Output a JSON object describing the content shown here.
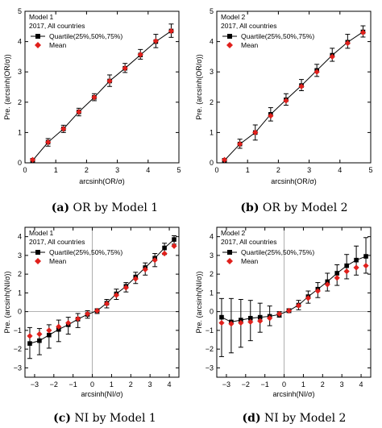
{
  "chart_data": [
    {
      "type": "line",
      "caption_id": "(a)",
      "caption_text": "OR by Model 1",
      "ylabel": "Pre. (arcsinh(OR/σ))",
      "xlabel": "arcsinh(OR/σ)",
      "xlim": [
        0,
        5
      ],
      "ylim": [
        0,
        5
      ],
      "xticks": [
        0,
        1,
        2,
        3,
        4,
        5
      ],
      "yticks": [
        0,
        1,
        2,
        3,
        4,
        5
      ],
      "zero_lines": false,
      "legend_title_1": "Model 1",
      "legend_title_2": "2017, All countries",
      "legend": [
        "Quartile(25%,50%,75%)",
        "Mean"
      ],
      "legend_position": "top-left",
      "series": [
        {
          "name": "Quartile(25%,50%,75%)",
          "x": [
            0.25,
            0.75,
            1.25,
            1.75,
            2.25,
            2.75,
            3.25,
            3.75,
            4.25,
            4.75
          ],
          "y": [
            0.08,
            0.68,
            1.12,
            1.68,
            2.16,
            2.7,
            3.12,
            3.56,
            4.0,
            4.35
          ],
          "q25": [
            0.03,
            0.55,
            1.0,
            1.55,
            2.05,
            2.52,
            2.98,
            3.42,
            3.8,
            4.14
          ],
          "q75": [
            0.14,
            0.8,
            1.24,
            1.8,
            2.28,
            2.9,
            3.28,
            3.74,
            4.24,
            4.58
          ]
        },
        {
          "name": "Mean",
          "x": [
            0.25,
            0.75,
            1.25,
            1.75,
            2.25,
            2.75,
            3.25,
            3.75,
            4.25,
            4.75
          ],
          "y": [
            0.1,
            0.68,
            1.12,
            1.68,
            2.16,
            2.7,
            3.12,
            3.57,
            4.02,
            4.35
          ]
        }
      ]
    },
    {
      "type": "line",
      "caption_id": "(b)",
      "caption_text": "OR by Model 2",
      "ylabel": "Pre. (arcsinh(OR/σ))",
      "xlabel": "arcsinh(OR/σ)",
      "xlim": [
        0,
        5
      ],
      "ylim": [
        0,
        5
      ],
      "xticks": [
        0,
        1,
        2,
        3,
        4,
        5
      ],
      "yticks": [
        0,
        1,
        2,
        3,
        4,
        5
      ],
      "zero_lines": false,
      "legend_title_1": "Model 2",
      "legend_title_2": "2017, All countries",
      "legend": [
        "Quartile(25%,50%,75%)",
        "Mean"
      ],
      "legend_position": "top-left",
      "series": [
        {
          "name": "Quartile(25%,50%,75%)",
          "x": [
            0.25,
            0.75,
            1.25,
            1.75,
            2.25,
            2.75,
            3.25,
            3.75,
            4.25,
            4.75
          ],
          "y": [
            0.08,
            0.62,
            1.0,
            1.6,
            2.08,
            2.55,
            3.05,
            3.55,
            3.98,
            4.32
          ],
          "q25": [
            0.03,
            0.48,
            0.75,
            1.38,
            1.9,
            2.38,
            2.85,
            3.35,
            3.78,
            4.15
          ],
          "q75": [
            0.14,
            0.78,
            1.25,
            1.82,
            2.28,
            2.75,
            3.25,
            3.78,
            4.24,
            4.52
          ]
        },
        {
          "name": "Mean",
          "x": [
            0.25,
            0.75,
            1.25,
            1.75,
            2.25,
            2.75,
            3.25,
            3.75,
            4.25,
            4.75
          ],
          "y": [
            0.1,
            0.62,
            1.0,
            1.55,
            2.05,
            2.52,
            3.0,
            3.5,
            3.95,
            4.3
          ]
        }
      ]
    },
    {
      "type": "line",
      "caption_id": "(c)",
      "caption_text": "NI by Model 1",
      "ylabel": "Pre. (arcsinh(NI/σ))",
      "xlabel": "arcsinh(NI/σ)",
      "xlim": [
        -3.5,
        4.5
      ],
      "ylim": [
        -3.5,
        4.5
      ],
      "xticks": [
        -3,
        -2,
        -1,
        0,
        1,
        2,
        3,
        4
      ],
      "yticks": [
        -3,
        -2,
        -1,
        0,
        1,
        2,
        3,
        4
      ],
      "zero_lines": true,
      "legend_title_1": "Model 1",
      "legend_title_2": "2017, All countries",
      "legend": [
        "Quartile(25%,50%,75%)",
        "Mean"
      ],
      "legend_position": "top-left",
      "series": [
        {
          "name": "Quartile(25%,50%,75%)",
          "x": [
            -3.25,
            -2.75,
            -2.25,
            -1.75,
            -1.25,
            -0.75,
            -0.25,
            0.25,
            0.75,
            1.25,
            1.75,
            2.25,
            2.75,
            3.25,
            3.75,
            4.25
          ],
          "y": [
            -1.7,
            -1.55,
            -1.25,
            -0.95,
            -0.7,
            -0.4,
            -0.15,
            0.05,
            0.45,
            0.95,
            1.35,
            1.85,
            2.35,
            2.85,
            3.4,
            3.85
          ],
          "q25": [
            -2.5,
            -2.3,
            -1.95,
            -1.6,
            -1.2,
            -0.85,
            -0.35,
            -0.1,
            0.2,
            0.65,
            1.05,
            1.5,
            1.95,
            2.4,
            3.05,
            3.6
          ],
          "q75": [
            -0.85,
            -0.9,
            -0.7,
            -0.45,
            -0.3,
            -0.1,
            0.05,
            0.15,
            0.65,
            1.2,
            1.55,
            2.1,
            2.6,
            3.1,
            3.65,
            4.05
          ]
        },
        {
          "name": "Mean",
          "x": [
            -3.25,
            -2.75,
            -2.25,
            -1.75,
            -1.25,
            -0.75,
            -0.25,
            0.25,
            0.75,
            1.25,
            1.75,
            2.25,
            2.75,
            3.25,
            3.75,
            4.25
          ],
          "y": [
            -1.3,
            -1.2,
            -1.0,
            -0.8,
            -0.6,
            -0.38,
            -0.12,
            0.05,
            0.42,
            0.88,
            1.28,
            1.75,
            2.25,
            2.75,
            3.1,
            3.5
          ]
        }
      ]
    },
    {
      "type": "line",
      "caption_id": "(d)",
      "caption_text": "NI by Model 2",
      "ylabel": "Pre. (arcsinh(NI/σ))",
      "xlabel": "arcsinh(NI/σ)",
      "xlim": [
        -3.5,
        4.5
      ],
      "ylim": [
        -3.5,
        4.5
      ],
      "xticks": [
        -3,
        -2,
        -1,
        0,
        1,
        2,
        3,
        4
      ],
      "yticks": [
        -3,
        -2,
        -1,
        0,
        1,
        2,
        3,
        4
      ],
      "zero_lines": true,
      "legend_title_1": "Model 2",
      "legend_title_2": "2017, All countries",
      "legend": [
        "Quartile(25%,50%,75%)",
        "Mean"
      ],
      "legend_position": "top-left",
      "series": [
        {
          "name": "Quartile(25%,50%,75%)",
          "x": [
            -3.25,
            -2.75,
            -2.25,
            -1.75,
            -1.25,
            -0.75,
            -0.25,
            0.25,
            0.75,
            1.25,
            1.75,
            2.25,
            2.75,
            3.25,
            3.75,
            4.25
          ],
          "y": [
            -0.3,
            -0.55,
            -0.45,
            -0.35,
            -0.3,
            -0.25,
            -0.15,
            0.05,
            0.35,
            0.8,
            1.2,
            1.6,
            2.05,
            2.45,
            2.75,
            2.95
          ],
          "q25": [
            -2.4,
            -2.2,
            -1.9,
            -1.55,
            -1.1,
            -0.75,
            -0.3,
            -0.05,
            0.1,
            0.45,
            0.75,
            1.1,
            1.4,
            1.75,
            1.95,
            2.05
          ],
          "q75": [
            0.7,
            0.7,
            0.65,
            0.6,
            0.45,
            0.3,
            0.0,
            0.15,
            0.6,
            1.1,
            1.55,
            2.05,
            2.5,
            3.05,
            3.5,
            3.95
          ]
        },
        {
          "name": "Mean",
          "x": [
            -3.25,
            -2.75,
            -2.25,
            -1.75,
            -1.25,
            -0.75,
            -0.25,
            0.25,
            0.75,
            1.25,
            1.75,
            2.25,
            2.75,
            3.25,
            3.75,
            4.25
          ],
          "y": [
            -0.6,
            -0.65,
            -0.6,
            -0.55,
            -0.5,
            -0.35,
            -0.12,
            0.05,
            0.32,
            0.72,
            1.1,
            1.45,
            1.8,
            2.15,
            2.35,
            2.45
          ]
        }
      ]
    }
  ],
  "colors": {
    "quartile": "#000000",
    "mean": "#e0201c",
    "axis": "#000000",
    "zero_line": "#999999"
  }
}
